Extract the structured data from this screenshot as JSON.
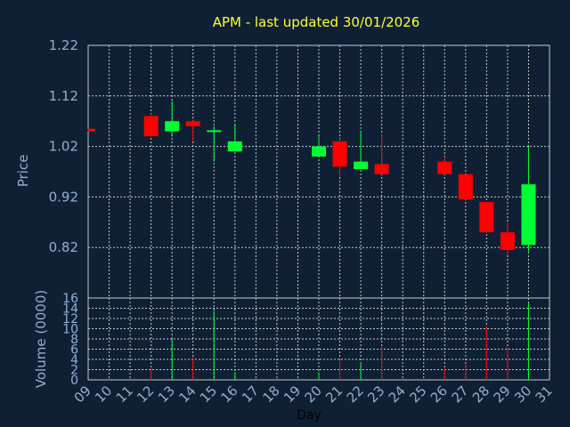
{
  "chart_data": {
    "type": "candlestick",
    "title": "APM - last updated 30/01/2026",
    "xlabel": "Day",
    "ylabel_price": "Price",
    "ylabel_volume": "Volume (0000)",
    "x_ticks": [
      "09",
      "10",
      "11",
      "12",
      "13",
      "14",
      "15",
      "16",
      "17",
      "18",
      "19",
      "20",
      "21",
      "22",
      "23",
      "24",
      "25",
      "26",
      "27",
      "28",
      "29",
      "30",
      "31"
    ],
    "price_ticks": [
      "1.22",
      "1.12",
      "1.02",
      "0.92",
      "0.82"
    ],
    "volume_ticks": [
      "16",
      "14",
      "12",
      "10",
      "8",
      "6",
      "4",
      "2",
      "0"
    ],
    "price_ylim": [
      0.72,
      1.22
    ],
    "volume_ylim": [
      0,
      16
    ],
    "grid": true,
    "colors": {
      "background": "#0f2035",
      "title": "#ffff33",
      "axis_text": "#8fb0d0",
      "up": "#00ff33",
      "down": "#ff0000",
      "grid": "#c8c8c8"
    },
    "candles": [
      {
        "day": "09",
        "open": 1.055,
        "high": 1.055,
        "low": 1.05,
        "close": 1.05,
        "volume": 0
      },
      {
        "day": "12",
        "open": 1.08,
        "high": 1.085,
        "low": 1.04,
        "close": 1.04,
        "volume": 2.5
      },
      {
        "day": "13",
        "open": 1.05,
        "high": 1.11,
        "low": 1.04,
        "close": 1.07,
        "volume": 8
      },
      {
        "day": "14",
        "open": 1.07,
        "high": 1.075,
        "low": 1.03,
        "close": 1.06,
        "volume": 4.5
      },
      {
        "day": "15",
        "open": 1.05,
        "high": 1.06,
        "low": 0.99,
        "close": 1.052,
        "volume": 13.5
      },
      {
        "day": "16",
        "open": 1.01,
        "high": 1.065,
        "low": 1.01,
        "close": 1.03,
        "volume": 1.5
      },
      {
        "day": "20",
        "open": 1.0,
        "high": 1.04,
        "low": 1.0,
        "close": 1.02,
        "volume": 1.5
      },
      {
        "day": "21",
        "open": 1.03,
        "high": 1.035,
        "low": 0.96,
        "close": 0.98,
        "volume": 4
      },
      {
        "day": "22",
        "open": 0.975,
        "high": 1.05,
        "low": 0.975,
        "close": 0.99,
        "volume": 3.5
      },
      {
        "day": "23",
        "open": 0.985,
        "high": 1.045,
        "low": 0.965,
        "close": 0.965,
        "volume": 6.5
      },
      {
        "day": "26",
        "open": 0.99,
        "high": 1.0,
        "low": 0.965,
        "close": 0.965,
        "volume": 2.5
      },
      {
        "day": "27",
        "open": 0.965,
        "high": 0.965,
        "low": 0.915,
        "close": 0.915,
        "volume": 3
      },
      {
        "day": "28",
        "open": 0.91,
        "high": 0.91,
        "low": 0.85,
        "close": 0.85,
        "volume": 10.5
      },
      {
        "day": "29",
        "open": 0.85,
        "high": 0.87,
        "low": 0.805,
        "close": 0.815,
        "volume": 6.5
      },
      {
        "day": "30",
        "open": 0.825,
        "high": 1.02,
        "low": 0.81,
        "close": 0.945,
        "volume": 15
      }
    ]
  }
}
